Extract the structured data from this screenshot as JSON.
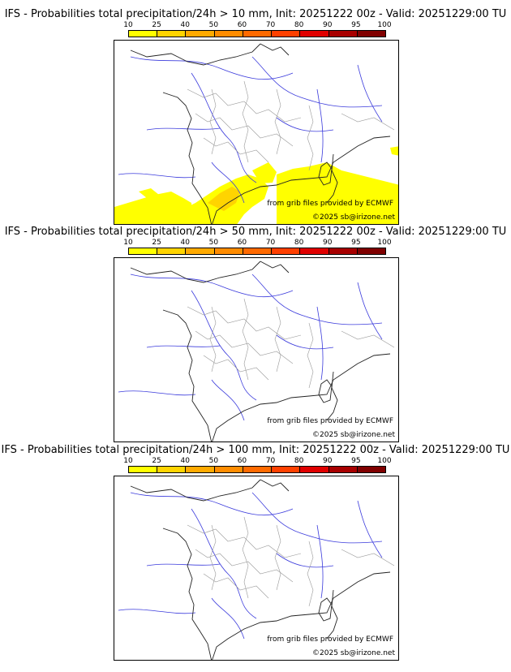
{
  "legend": {
    "ticks": [
      "10",
      "25",
      "40",
      "50",
      "60",
      "70",
      "80",
      "90",
      "95",
      "100"
    ],
    "colors": [
      "#ffff00",
      "#ffd400",
      "#ffaa00",
      "#ff8c00",
      "#ff6a00",
      "#ff4000",
      "#e00000",
      "#a80000",
      "#800000",
      "#500000"
    ]
  },
  "panels": [
    {
      "title": "IFS - Probabilities total precipitation/24h > 10 mm, Init: 20251222 00z - Valid: 20251229:00 TU",
      "threshold_mm": 10,
      "has_precip_area": true
    },
    {
      "title": "IFS - Probabilities total precipitation/24h > 50 mm, Init: 20251222 00z - Valid: 20251229:00 TU",
      "threshold_mm": 50,
      "has_precip_area": false
    },
    {
      "title": "IFS - Probabilities total precipitation/24h > 100 mm, Init: 20251222 00z - Valid: 20251229:00 TU",
      "threshold_mm": 100,
      "has_precip_area": false
    }
  ],
  "credits": {
    "source": "from grib files provided by ECMWF",
    "copyright": "©2025 sb@irizone.net"
  }
}
